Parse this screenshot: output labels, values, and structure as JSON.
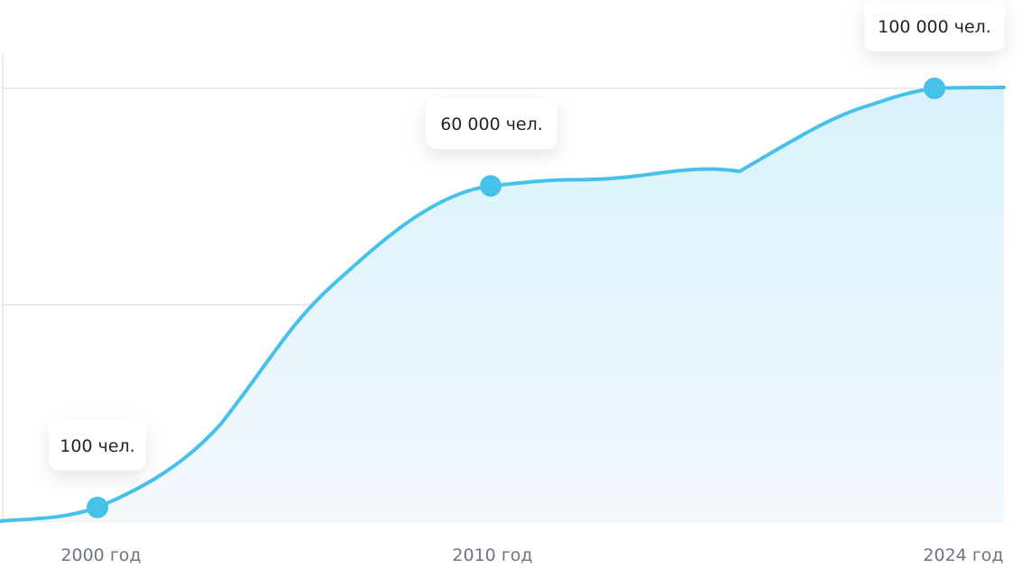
{
  "chart_data": {
    "type": "area",
    "title": "",
    "xlabel": "",
    "ylabel": "",
    "categories": [
      "2000 год",
      "2010 год",
      "2024 год"
    ],
    "series": [
      {
        "values": [
          100,
          60000,
          100000
        ]
      }
    ],
    "data_labels": [
      "100 чел.",
      "60 000 чел.",
      "100 000 чел."
    ],
    "ylim": [
      0,
      100000
    ],
    "grid": true,
    "legend": "none",
    "colors": {
      "line": "#45c1ea",
      "marker": "#45c1ea",
      "fill_top": "#d9f2fb",
      "fill_bottom": "#f4f9fd",
      "grid": "#dcdfe3",
      "axis_text": "#6f7580",
      "label_text": "#1f2329"
    }
  }
}
